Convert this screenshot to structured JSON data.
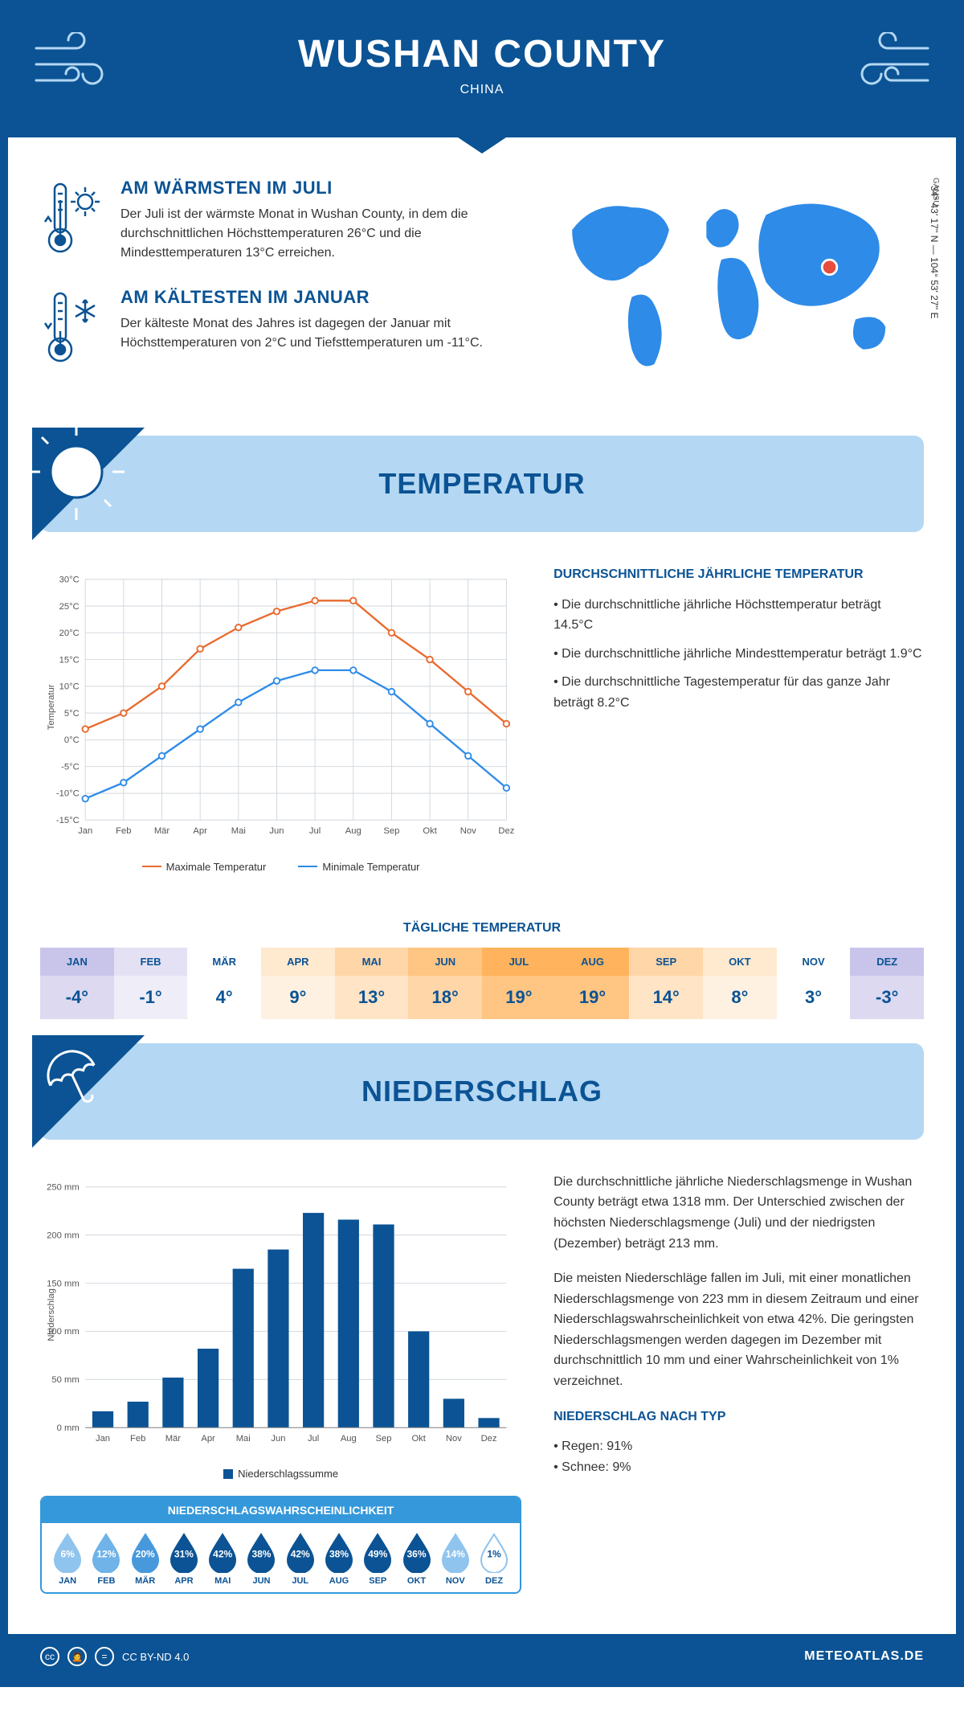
{
  "header": {
    "title": "WUSHAN COUNTY",
    "subtitle": "CHINA",
    "region": "GANSU",
    "coords": "34° 43' 17'' N — 104° 53' 27'' E"
  },
  "colors": {
    "brand": "#0b5394",
    "banner_bg": "#b4d7f3",
    "max_line": "#e86a2e",
    "min_line": "#2e8be8",
    "bar_fill": "#0b5394",
    "grid": "#d0d7de"
  },
  "facts": {
    "warm": {
      "title": "AM WÄRMSTEN IM JULI",
      "text": "Der Juli ist der wärmste Monat in Wushan County, in dem die durchschnittlichen Höchsttemperaturen 26°C und die Mindesttemperaturen 13°C erreichen."
    },
    "cold": {
      "title": "AM KÄLTESTEN IM JANUAR",
      "text": "Der kälteste Monat des Jahres ist dagegen der Januar mit Höchsttemperaturen von 2°C und Tiefsttemperaturen um -11°C."
    }
  },
  "sections": {
    "temperature": {
      "title": "TEMPERATUR",
      "side_heading": "DURCHSCHNITTLICHE JÄHRLICHE TEMPERATUR",
      "bullets": [
        "• Die durchschnittliche jährliche Höchsttemperatur beträgt 14.5°C",
        "• Die durchschnittliche jährliche Mindesttemperatur beträgt 1.9°C",
        "• Die durchschnittliche Tagestemperatur für das ganze Jahr beträgt 8.2°C"
      ],
      "chart": {
        "months": [
          "Jan",
          "Feb",
          "Mär",
          "Apr",
          "Mai",
          "Jun",
          "Jul",
          "Aug",
          "Sep",
          "Okt",
          "Nov",
          "Dez"
        ],
        "max": [
          2,
          5,
          10,
          17,
          21,
          24,
          26,
          26,
          20,
          15,
          9,
          3
        ],
        "min": [
          -11,
          -8,
          -3,
          2,
          7,
          11,
          13,
          13,
          9,
          3,
          -3,
          -9
        ],
        "legend_max": "Maximale Temperatur",
        "legend_min": "Minimale Temperatur",
        "y_label": "Temperatur",
        "y_min": -15,
        "y_max": 30,
        "y_step": 5
      },
      "daily_title": "TÄGLICHE TEMPERATUR",
      "daily": {
        "months": [
          "JAN",
          "FEB",
          "MÄR",
          "APR",
          "MAI",
          "JUN",
          "JUL",
          "AUG",
          "SEP",
          "OKT",
          "NOV",
          "DEZ"
        ],
        "values": [
          "-4°",
          "-1°",
          "4°",
          "9°",
          "13°",
          "18°",
          "19°",
          "19°",
          "14°",
          "8°",
          "3°",
          "-3°"
        ],
        "header_colors": [
          "#c9c5ea",
          "#e4e1f4",
          "#ffffff",
          "#ffe9cf",
          "#ffd6a8",
          "#ffc583",
          "#ffb35c",
          "#ffb35c",
          "#ffd6a8",
          "#ffe9cf",
          "#ffffff",
          "#c9c5ea"
        ],
        "value_colors": [
          "#dcd9f0",
          "#efedf8",
          "#ffffff",
          "#fff1e1",
          "#ffe4c6",
          "#ffd6a8",
          "#ffc583",
          "#ffc583",
          "#ffe4c6",
          "#fff1e1",
          "#ffffff",
          "#dcd9f0"
        ]
      }
    },
    "precipitation": {
      "title": "NIEDERSCHLAG",
      "text1": "Die durchschnittliche jährliche Niederschlagsmenge in Wushan County beträgt etwa 1318 mm. Der Unterschied zwischen der höchsten Niederschlagsmenge (Juli) und der niedrigsten (Dezember) beträgt 213 mm.",
      "text2": "Die meisten Niederschläge fallen im Juli, mit einer monatlichen Niederschlagsmenge von 223 mm in diesem Zeitraum und einer Niederschlagswahrscheinlichkeit von etwa 42%. Die geringsten Niederschlagsmengen werden dagegen im Dezember mit durchschnittlich 10 mm und einer Wahrscheinlichkeit von 1% verzeichnet.",
      "by_type_heading": "NIEDERSCHLAG NACH TYP",
      "by_type": [
        "• Regen: 91%",
        "• Schnee: 9%"
      ],
      "chart": {
        "months": [
          "Jan",
          "Feb",
          "Mär",
          "Apr",
          "Mai",
          "Jun",
          "Jul",
          "Aug",
          "Sep",
          "Okt",
          "Nov",
          "Dez"
        ],
        "values": [
          17,
          27,
          52,
          82,
          165,
          185,
          223,
          216,
          211,
          100,
          30,
          10
        ],
        "y_label": "Niederschlag",
        "y_min": 0,
        "y_max": 250,
        "y_step": 50,
        "legend": "Niederschlagssumme"
      },
      "probability": {
        "title": "NIEDERSCHLAGSWAHRSCHEINLICHKEIT",
        "months": [
          "JAN",
          "FEB",
          "MÄR",
          "APR",
          "MAI",
          "JUN",
          "JUL",
          "AUG",
          "SEP",
          "OKT",
          "NOV",
          "DEZ"
        ],
        "pct": [
          "6%",
          "12%",
          "20%",
          "31%",
          "42%",
          "38%",
          "42%",
          "38%",
          "49%",
          "36%",
          "14%",
          "1%"
        ],
        "drop_colors": [
          "#8fc4ee",
          "#6fb3e8",
          "#4799dc",
          "#0b5394",
          "#0b5394",
          "#0b5394",
          "#0b5394",
          "#0b5394",
          "#0b5394",
          "#0b5394",
          "#8fc4ee",
          "#ffffff"
        ],
        "text_colors": [
          "#fff",
          "#fff",
          "#fff",
          "#fff",
          "#fff",
          "#fff",
          "#fff",
          "#fff",
          "#fff",
          "#fff",
          "#fff",
          "#0b5394"
        ]
      }
    }
  },
  "footer": {
    "license": "CC BY-ND 4.0",
    "site": "METEOATLAS.DE"
  }
}
